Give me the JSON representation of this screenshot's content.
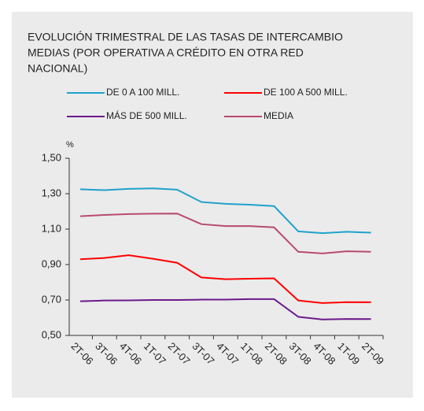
{
  "chart_data": {
    "type": "line",
    "title": [
      "EVOLUCIÓN TRIMESTRAL DE LAS TASAS DE INTERCAMBIO",
      "MEDIAS (POR OPERATIVA A CRÉDITO EN OTRA RED",
      "NACIONAL)"
    ],
    "y_label": "%",
    "categories": [
      "2T-06",
      "3T-06",
      "4T-06",
      "1T-07",
      "2T-07",
      "3T-07",
      "4T-07",
      "1T-08",
      "2T-08",
      "3T-08",
      "4T-08",
      "1T-09",
      "2T-09"
    ],
    "series": [
      {
        "name": "DE 0 A 100 MILL.",
        "color": "#1ea2cb",
        "values": [
          1.325,
          1.32,
          1.327,
          1.33,
          1.323,
          1.253,
          1.243,
          1.238,
          1.23,
          1.087,
          1.077,
          1.085,
          1.08
        ]
      },
      {
        "name": "DE 100 A 500 MILL.",
        "color": "#ff0000",
        "values": [
          0.93,
          0.937,
          0.953,
          0.933,
          0.91,
          0.827,
          0.817,
          0.82,
          0.822,
          0.697,
          0.683,
          0.688,
          0.687
        ]
      },
      {
        "name": "MÁS DE 500 MILL.",
        "color": "#6b1a8c",
        "values": [
          0.693,
          0.697,
          0.698,
          0.7,
          0.7,
          0.702,
          0.702,
          0.705,
          0.705,
          0.605,
          0.59,
          0.593,
          0.592
        ]
      },
      {
        "name": "MEDIA",
        "color": "#b84a72",
        "values": [
          1.173,
          1.18,
          1.185,
          1.187,
          1.188,
          1.128,
          1.117,
          1.117,
          1.11,
          0.972,
          0.963,
          0.975,
          0.972
        ]
      }
    ],
    "ylim": [
      0.5,
      1.5
    ],
    "yticks": [
      {
        "value": 0.5,
        "label": "0,50"
      },
      {
        "value": 0.7,
        "label": "0,70"
      },
      {
        "value": 0.9,
        "label": "0,90"
      },
      {
        "value": 1.1,
        "label": "1,10"
      },
      {
        "value": 1.3,
        "label": "1,30"
      },
      {
        "value": 1.5,
        "label": "1,50"
      }
    ],
    "grid": false
  }
}
